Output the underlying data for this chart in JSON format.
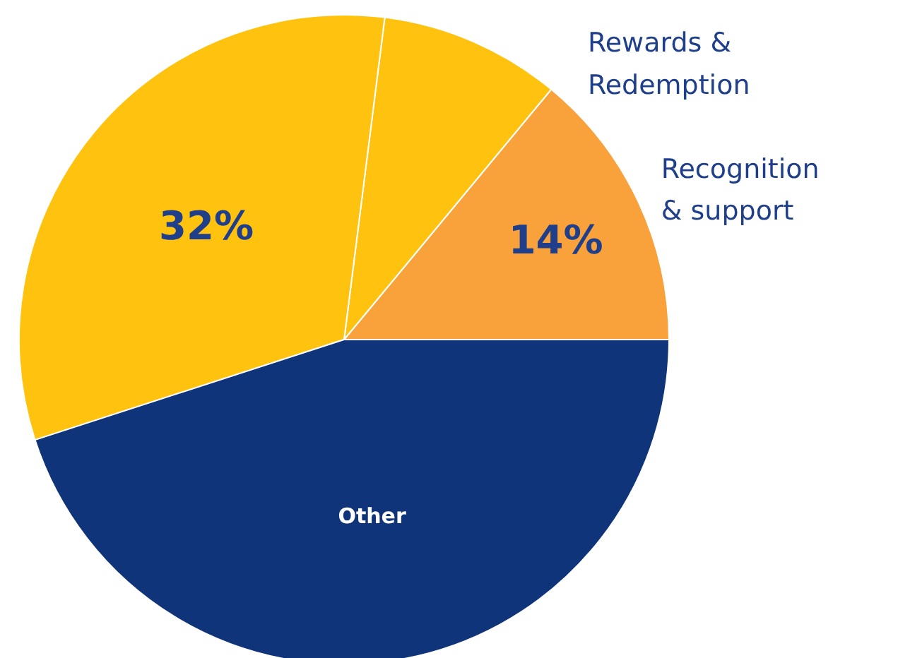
{
  "chart_data": {
    "type": "pie",
    "categories": [
      "Recognition & support",
      "Rewards & Redemption",
      null,
      "Other"
    ],
    "values": [
      14,
      9,
      32,
      45
    ],
    "colors": [
      "#f9a13a",
      "#ffc20e",
      "#ffc20e",
      "#0f347a"
    ],
    "value_labels": [
      "14%",
      null,
      "32%",
      null
    ]
  }
}
